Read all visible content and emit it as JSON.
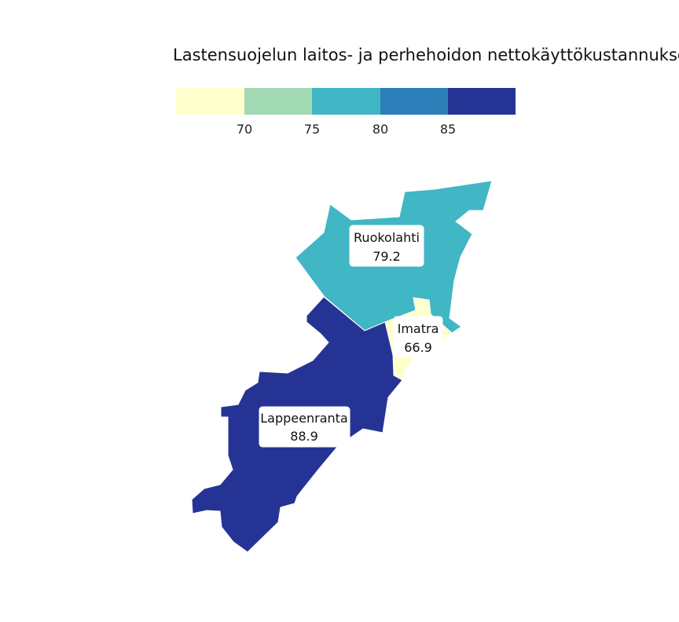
{
  "map": {
    "title": "Lastensuojelun laitos- ja perhehoidon nettokäyttökustannukset",
    "legend": {
      "bins": [
        {
          "color": "#ffffcc"
        },
        {
          "color": "#a1dab4"
        },
        {
          "color": "#41b6c4"
        },
        {
          "color": "#2c7fb8"
        },
        {
          "color": "#253494"
        }
      ],
      "ticks": [
        "70",
        "75",
        "80",
        "85"
      ]
    },
    "regions": [
      {
        "name": "Ruokolahti",
        "value": "79.2",
        "color": "#41b6c4"
      },
      {
        "name": "Imatra",
        "value": "66.9",
        "color": "#ffffcc"
      },
      {
        "name": "Lappeenranta",
        "value": "88.9",
        "color": "#253494"
      }
    ]
  },
  "chart_data": {
    "type": "choropleth",
    "title": "Lastensuojelun laitos- ja perhehoidon nettokäyttökustannukset",
    "legend_breaks": [
      70,
      75,
      80,
      85
    ],
    "colors": [
      "#ffffcc",
      "#a1dab4",
      "#41b6c4",
      "#2c7fb8",
      "#253494"
    ],
    "regions": [
      {
        "name": "Ruokolahti",
        "value": 79.2
      },
      {
        "name": "Imatra",
        "value": 66.9
      },
      {
        "name": "Lappeenranta",
        "value": 88.9
      }
    ]
  }
}
